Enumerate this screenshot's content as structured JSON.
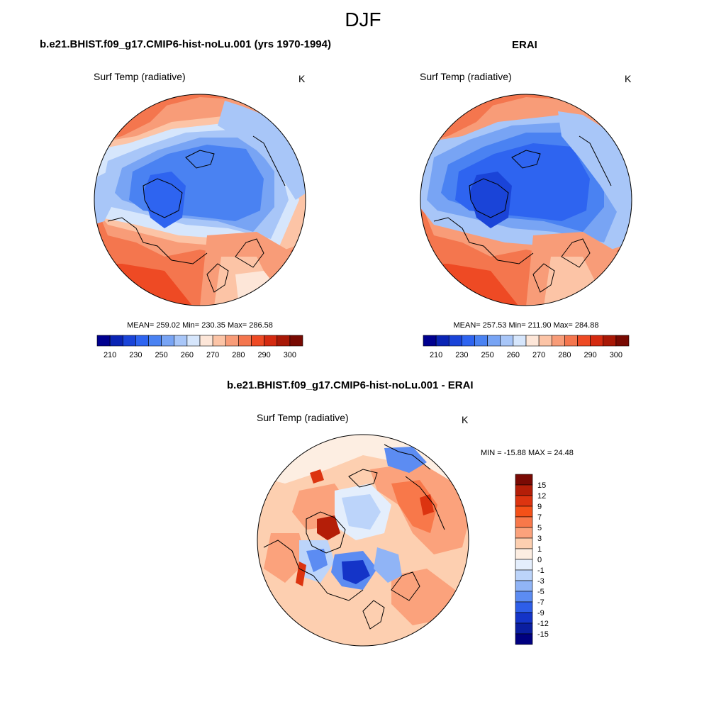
{
  "figure": {
    "title": "DJF"
  },
  "panels": [
    {
      "title": "b.e21.BHIST.f09_g17.CMIP6-hist-noLu.001 (yrs 1970-1994)",
      "variable": "Surf Temp (radiative)",
      "units": "K",
      "stats_text": "MEAN= 259.02  Min= 230.35  Max= 286.58",
      "stats": {
        "mean": 259.02,
        "min": 230.35,
        "max": 286.58
      }
    },
    {
      "title": "ERAI",
      "variable": "Surf Temp (radiative)",
      "units": "K",
      "stats_text": "MEAN= 257.53  Min= 211.90  Max= 284.88",
      "stats": {
        "mean": 257.53,
        "min": 211.9,
        "max": 284.88
      }
    },
    {
      "title": "b.e21.BHIST.f09_g17.CMIP6-hist-noLu.001 - ERAI",
      "variable": "Surf Temp (radiative)",
      "units": "K",
      "stats_text": "MIN = -15.88 MAX =  24.48",
      "stats": {
        "min": -15.88,
        "max": 24.48
      }
    }
  ],
  "colorbar_temperature": {
    "orientation": "horizontal",
    "labels": [
      "210",
      "230",
      "250",
      "260",
      "270",
      "280",
      "290",
      "300"
    ],
    "colors": [
      "#00008f",
      "#0a24b4",
      "#1a44d8",
      "#2e64f0",
      "#4a82f2",
      "#78a4f4",
      "#a8c6f8",
      "#d6e6fc",
      "#fde6d8",
      "#fcc4a6",
      "#f89c78",
      "#f4764e",
      "#ee4a24",
      "#d42a10",
      "#a81806",
      "#780a02"
    ]
  },
  "colorbar_difference": {
    "orientation": "vertical",
    "labels": [
      "15",
      "12",
      "9",
      "7",
      "5",
      "3",
      "1",
      "0",
      "-1",
      "-3",
      "-5",
      "-7",
      "-9",
      "-12",
      "-15"
    ],
    "colors": [
      "#7a0a04",
      "#b41e08",
      "#dc3410",
      "#f45018",
      "#f8784a",
      "#fba27c",
      "#fdcfb0",
      "#fdeee2",
      "#e4eefc",
      "#bcd4fa",
      "#90b4f6",
      "#5c8cf2",
      "#2e5ee8",
      "#1434c8",
      "#0a1ea0",
      "#000080"
    ]
  }
}
